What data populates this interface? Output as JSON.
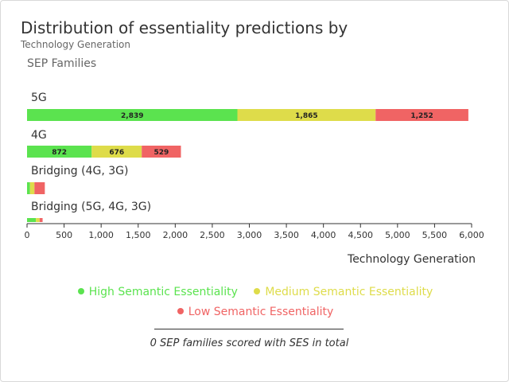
{
  "chart_data": {
    "type": "bar",
    "orientation": "horizontal",
    "stacked": true,
    "title": "Distribution of essentiality predictions by",
    "subtitle": "Technology Generation",
    "ylabel": "SEP Families",
    "xlabel": "Technology Generation",
    "categories": [
      "5G",
      "4G",
      "Bridging (4G, 3G)",
      "Bridging (5G, 4G, 3G)"
    ],
    "series": [
      {
        "name": "High Semantic Essentiality",
        "color": "#5be34f",
        "values": [
          2839,
          872,
          40,
          120
        ]
      },
      {
        "name": "Medium Semantic Essentiality",
        "color": "#dedc4a",
        "values": [
          1865,
          676,
          60,
          50
        ]
      },
      {
        "name": "Low Semantic Essentiality",
        "color": "#f06464",
        "values": [
          1252,
          529,
          140,
          40
        ]
      }
    ],
    "data_labels": [
      [
        "2,839",
        "1,865",
        "1,252"
      ],
      [
        "872",
        "676",
        "529"
      ],
      [
        "",
        "",
        ""
      ],
      [
        "",
        "",
        ""
      ]
    ],
    "xlim": [
      0,
      6000
    ],
    "xticks": [
      "0",
      "500",
      "1,000",
      "1,500",
      "2,000",
      "2,500",
      "3,000",
      "3,500",
      "4,000",
      "4,500",
      "5,000",
      "5,500",
      "6,000"
    ],
    "legend_position": "bottom"
  },
  "footer": {
    "note": "0 SEP families scored with SES in total"
  }
}
